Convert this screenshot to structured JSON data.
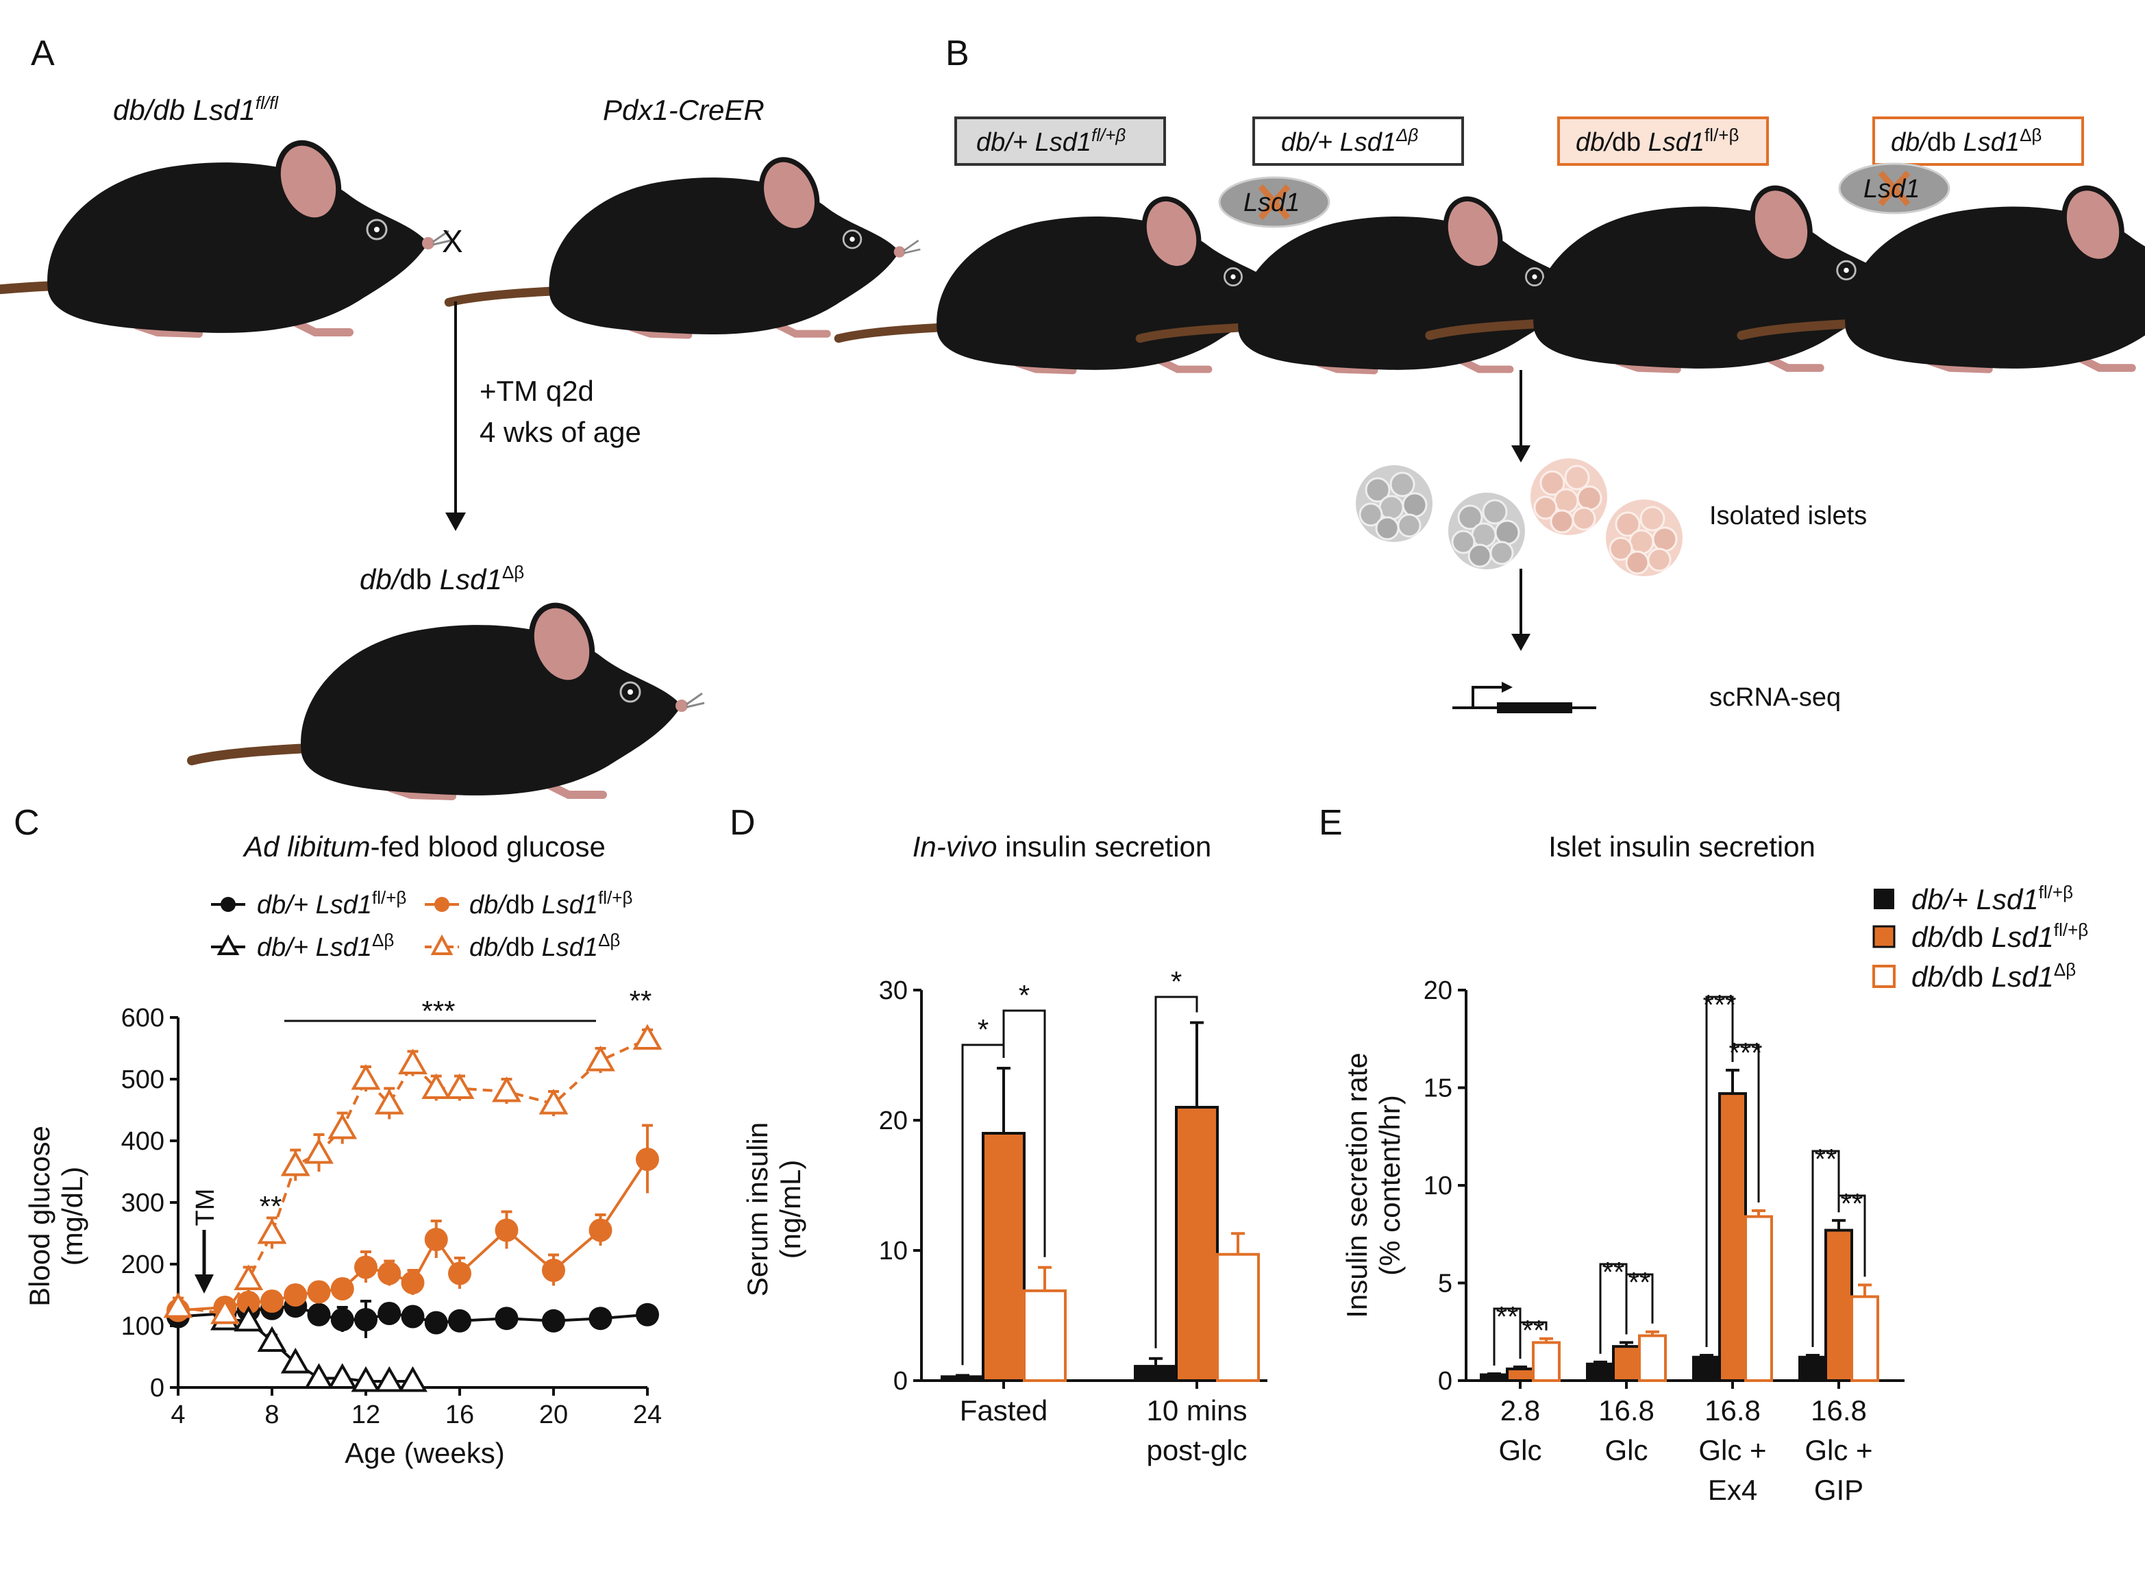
{
  "colors": {
    "orange": "#E07028",
    "black": "#111111",
    "mouse_body": "#161616",
    "mouse_ear": "#C98F8B",
    "mouse_tail": "#6B4226",
    "box_grey": "#D9D9D9",
    "box_pink": "#FBE3D6",
    "islet_grey": "#B8B8B8",
    "islet_pink": "#EDC4B8"
  },
  "panel_a": {
    "letter": "A",
    "parent1": "db/db Lsd1",
    "parent1_sup": "fl/fl",
    "parent2": "Pdx1-CreER",
    "cross": "X",
    "treatment_line1": "+TM q2d",
    "treatment_line2": "4 wks of age",
    "offspring_it": "db/",
    "offspring_rest": "db ",
    "offspring_gene": "Lsd1",
    "offspring_sup": "Δβ"
  },
  "panel_b": {
    "letter": "B",
    "boxes": [
      {
        "geno": "db/+ Lsd1",
        "sup": "fl/+β",
        "fill": "grey"
      },
      {
        "geno": "db/+ Lsd1",
        "sup": "Δβ",
        "fill": "white"
      },
      {
        "geno_it": "db/",
        "geno_rest": "db ",
        "gene": "Lsd1",
        "sup": "fl/+β",
        "fill": "pink"
      },
      {
        "geno_it": "db/",
        "geno_rest": "db ",
        "gene": "Lsd1",
        "sup": "Δβ",
        "fill": "pink-outline"
      }
    ],
    "knockout_label": "Lsd1",
    "step1": "Isolated islets",
    "step2": "scRNA-seq"
  },
  "panel_c": {
    "letter": "C",
    "title_it": "Ad libitum",
    "title_rest": "-fed blood glucose",
    "legend": [
      {
        "it": "db/+ ",
        "gene": "Lsd1",
        "sup": "fl/+β",
        "marker": "filled-circle",
        "color": "black"
      },
      {
        "it": "db/",
        "rest": "db ",
        "gene": "Lsd1",
        "sup": "fl/+β",
        "marker": "filled-circle",
        "color": "orange"
      },
      {
        "it": "db/+ ",
        "gene": "Lsd1",
        "sup": "Δβ",
        "marker": "open-triangle",
        "color": "black"
      },
      {
        "it": "db/",
        "rest": "db ",
        "gene": "Lsd1",
        "sup": "Δβ",
        "marker": "open-triangle",
        "color": "orange"
      }
    ],
    "ylabel_line1": "Blood glucose",
    "ylabel_line2": "(mg/dL)",
    "xlabel": "Age (weeks)",
    "tm_label": "TM",
    "sig_bar": "***",
    "sig_8wk": "**",
    "sig_24wk": "**"
  },
  "panel_d": {
    "letter": "D",
    "title_it": "In-vivo",
    "title_rest": " insulin secretion",
    "ylabel_line1": "Serum insulin",
    "ylabel_line2": "(ng/mL)",
    "group_labels": [
      [
        "Fasted"
      ],
      [
        "10 mins",
        "post-glc"
      ]
    ],
    "sig": [
      "*",
      "*",
      "*"
    ]
  },
  "panel_e": {
    "letter": "E",
    "title": "Islet insulin secretion",
    "legend": [
      {
        "it": "db/+ ",
        "gene": "Lsd1",
        "sup": "fl/+β",
        "swatch": "black"
      },
      {
        "it": "db/",
        "rest": "db ",
        "gene": "Lsd1",
        "sup": "fl/+β",
        "swatch": "orange"
      },
      {
        "it": "db/",
        "rest": "db ",
        "gene": "Lsd1",
        "sup": "Δβ",
        "swatch": "open-orange"
      }
    ],
    "ylabel_line1": "Insulin secretion rate",
    "ylabel_line2": "(% content/hr)",
    "group_labels": [
      [
        "2.8",
        "Glc"
      ],
      [
        "16.8",
        "Glc"
      ],
      [
        "16.8",
        "Glc +",
        "Ex4"
      ],
      [
        "16.8",
        "Glc +",
        "GIP"
      ]
    ],
    "sig": [
      [
        "**",
        "**"
      ],
      [
        "**",
        "**"
      ],
      [
        "***",
        "***"
      ],
      [
        "**",
        "**"
      ]
    ]
  },
  "chart_data": [
    {
      "id": "C",
      "type": "line",
      "xlim": [
        4,
        24
      ],
      "ylim": [
        0,
        600
      ],
      "x_ticks": [
        4,
        8,
        12,
        16,
        20,
        24
      ],
      "y_ticks": [
        0,
        100,
        200,
        300,
        400,
        500,
        600
      ],
      "series": [
        {
          "name": "db/+ Lsd1 fl/+β",
          "style": "solid",
          "marker": "filled-circle",
          "color": "black",
          "x": [
            4,
            6,
            7,
            8,
            9,
            10,
            11,
            12,
            13,
            14,
            15,
            16,
            18,
            20,
            22,
            24
          ],
          "y": [
            115,
            120,
            125,
            128,
            132,
            118,
            110,
            110,
            120,
            115,
            105,
            108,
            112,
            108,
            112,
            118
          ],
          "err": [
            15,
            10,
            10,
            10,
            10,
            15,
            20,
            30,
            15,
            10,
            10,
            10,
            10,
            10,
            10,
            10
          ]
        },
        {
          "name": "db/db Lsd1 fl/+β",
          "style": "solid",
          "marker": "filled-circle",
          "color": "orange",
          "x": [
            4,
            6,
            7,
            8,
            9,
            10,
            11,
            12,
            13,
            14,
            15,
            16,
            18,
            20,
            22,
            24
          ],
          "y": [
            125,
            130,
            138,
            140,
            150,
            155,
            160,
            195,
            185,
            170,
            240,
            185,
            255,
            190,
            255,
            370
          ],
          "err": [
            15,
            10,
            15,
            15,
            15,
            15,
            15,
            25,
            20,
            20,
            30,
            25,
            30,
            25,
            25,
            55
          ]
        },
        {
          "name": "db/+ Lsd1 Δβ",
          "style": "solid",
          "marker": "open-triangle",
          "color": "black",
          "x": [
            6,
            7,
            8,
            9,
            10,
            11,
            12,
            13,
            14
          ],
          "y": [
            110,
            108,
            75,
            40,
            15,
            15,
            10,
            10,
            10
          ],
          "err": [
            10,
            10,
            10,
            5,
            5,
            5,
            5,
            5,
            5
          ]
        },
        {
          "name": "db/db Lsd1 Δβ",
          "style": "dashed",
          "marker": "open-triangle",
          "color": "orange",
          "x": [
            4,
            6,
            7,
            8,
            9,
            10,
            11,
            12,
            13,
            14,
            15,
            16,
            18,
            20,
            22,
            24
          ],
          "y": [
            130,
            120,
            175,
            250,
            360,
            380,
            420,
            500,
            460,
            525,
            485,
            485,
            480,
            460,
            530,
            565
          ],
          "err": [
            15,
            10,
            20,
            25,
            25,
            30,
            25,
            20,
            25,
            20,
            20,
            20,
            20,
            20,
            20,
            15
          ]
        }
      ]
    },
    {
      "id": "D",
      "type": "bar",
      "ylim": [
        0,
        30
      ],
      "y_ticks": [
        0,
        10,
        20,
        30
      ],
      "categories": [
        "Fasted",
        "10 mins post-glc"
      ],
      "series": [
        {
          "name": "db/+ Lsd1 fl/+β",
          "color": "black",
          "values": [
            0.3,
            1.1
          ],
          "err": [
            0.1,
            0.6
          ]
        },
        {
          "name": "db/db Lsd1 fl/+β",
          "color": "orange",
          "values": [
            19.0,
            21.0
          ],
          "err": [
            5.0,
            6.5
          ]
        },
        {
          "name": "db/db Lsd1 Δβ",
          "color": "open-orange",
          "values": [
            6.9,
            9.7
          ],
          "err": [
            1.8,
            1.6
          ]
        }
      ]
    },
    {
      "id": "E",
      "type": "bar",
      "ylim": [
        0,
        20
      ],
      "y_ticks": [
        0,
        5,
        10,
        15,
        20
      ],
      "categories": [
        "2.8 Glc",
        "16.8 Glc",
        "16.8 Glc + Ex4",
        "16.8 Glc + GIP"
      ],
      "series": [
        {
          "name": "db/+ Lsd1 fl/+β",
          "color": "black",
          "values": [
            0.3,
            0.85,
            1.2,
            1.2
          ],
          "err": [
            0.05,
            0.1,
            0.1,
            0.1
          ]
        },
        {
          "name": "db/db Lsd1 fl/+β",
          "color": "orange",
          "values": [
            0.6,
            1.75,
            14.7,
            7.7
          ],
          "err": [
            0.1,
            0.2,
            1.2,
            0.5
          ]
        },
        {
          "name": "db/db Lsd1 Δβ",
          "color": "open-orange",
          "values": [
            1.95,
            2.3,
            8.4,
            4.3
          ],
          "err": [
            0.2,
            0.2,
            0.3,
            0.6
          ]
        }
      ]
    }
  ]
}
